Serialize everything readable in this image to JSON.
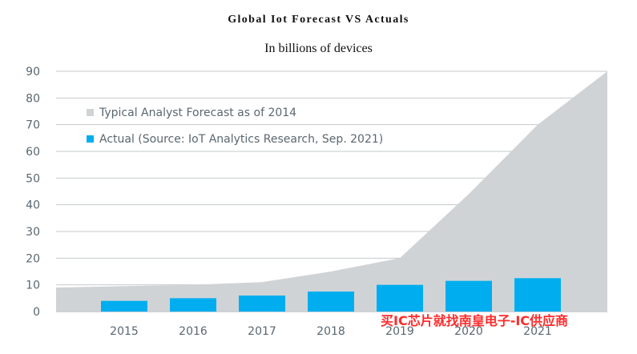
{
  "chart_data": {
    "type": "bar",
    "title": "Global Iot Forecast VS Actuals",
    "subtitle": "In billions of devices",
    "xlabel": "",
    "ylabel": "",
    "ylim": [
      0,
      90
    ],
    "yticks": [
      0,
      10,
      20,
      30,
      40,
      50,
      60,
      70,
      80,
      90
    ],
    "categories": [
      "2015",
      "2016",
      "2017",
      "2018",
      "2019",
      "2020",
      "2021"
    ],
    "grid": true,
    "legend_position": "top-left",
    "series": [
      {
        "name": "Typical Analyst Forecast as of 2014",
        "type": "area",
        "color": "#d0d3d6",
        "values": [
          9.5,
          10,
          11,
          15,
          20,
          44,
          70
        ]
      },
      {
        "name": "Actual (Source: IoT Analytics Research, Sep. 2021)",
        "type": "bar",
        "color": "#00aeef",
        "values": [
          4,
          5,
          6,
          7.5,
          10,
          11.5,
          12.5
        ]
      }
    ]
  },
  "watermark": "买IC芯片就找南皇电子-IC供应商"
}
